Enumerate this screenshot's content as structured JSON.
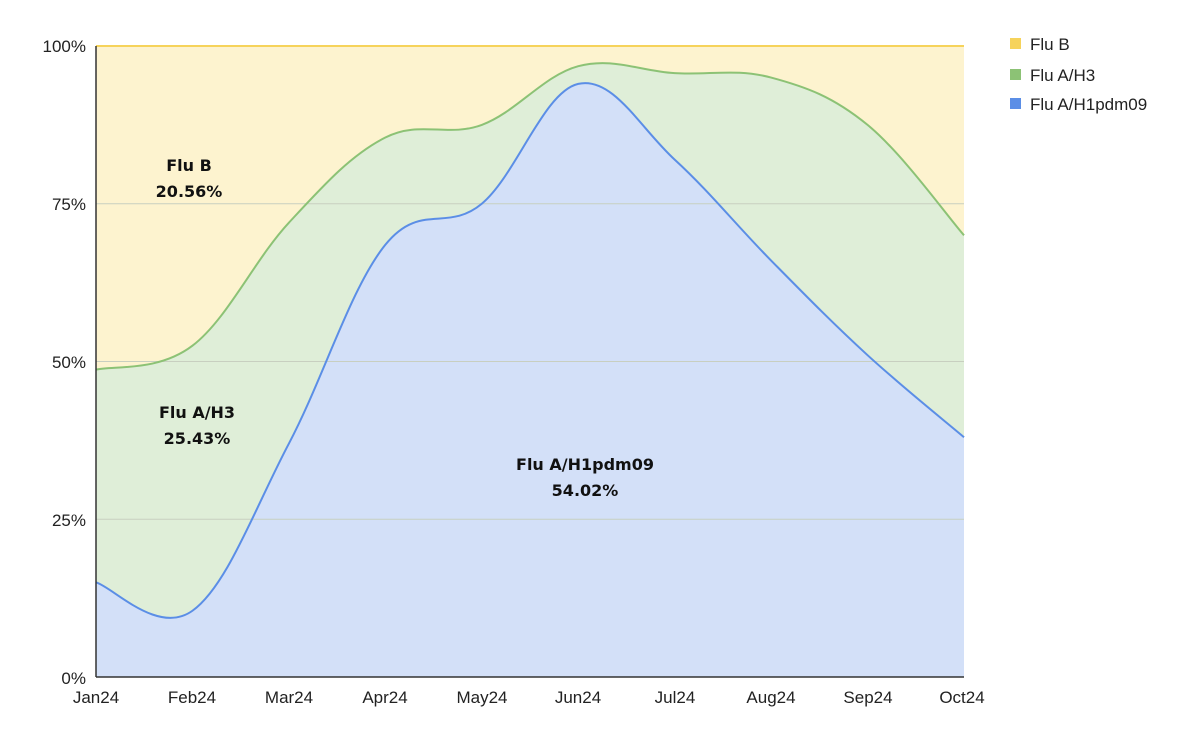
{
  "chart_data": {
    "type": "area",
    "stacked_percent": true,
    "title": "",
    "xlabel": "",
    "ylabel": "",
    "categories": [
      "Jan24",
      "Feb24",
      "Mar24",
      "Apr24",
      "May24",
      "Jun24",
      "Jul24",
      "Aug24",
      "Sep24",
      "Oct24"
    ],
    "ylim": [
      0,
      100
    ],
    "yticks": [
      0,
      25,
      50,
      75,
      100
    ],
    "ytick_labels": [
      "0%",
      "25%",
      "50%",
      "75%",
      "100%"
    ],
    "grid": true,
    "legend_position": "top-right",
    "series": [
      {
        "name": "Flu B",
        "color": "#f6d35b",
        "fill": "#fdf3cf",
        "values": [
          51.3,
          47.5,
          28.0,
          14.5,
          12.5,
          3.2,
          4.3,
          5.0,
          12.5,
          30.0
        ]
      },
      {
        "name": "Flu A/H3",
        "color": "#8cc275",
        "fill": "#dfeed8",
        "values": [
          33.7,
          42.0,
          35.0,
          17.0,
          12.5,
          2.8,
          13.7,
          29.0,
          36.5,
          32.0
        ]
      },
      {
        "name": "Flu A/H1pdm09",
        "color": "#5b8ee6",
        "fill": "#d3e0f8",
        "values": [
          15.0,
          10.5,
          37.0,
          68.5,
          75.0,
          94.0,
          82.0,
          66.0,
          51.0,
          38.0
        ]
      }
    ],
    "annotations": [
      {
        "series": "Flu B",
        "name_text": "Flu B",
        "value_text": "20.56%"
      },
      {
        "series": "Flu A/H3",
        "name_text": "Flu A/H3",
        "value_text": "25.43%"
      },
      {
        "series": "Flu A/H1pdm09",
        "name_text": "Flu A/H1pdm09",
        "value_text": "54.02%"
      }
    ]
  }
}
